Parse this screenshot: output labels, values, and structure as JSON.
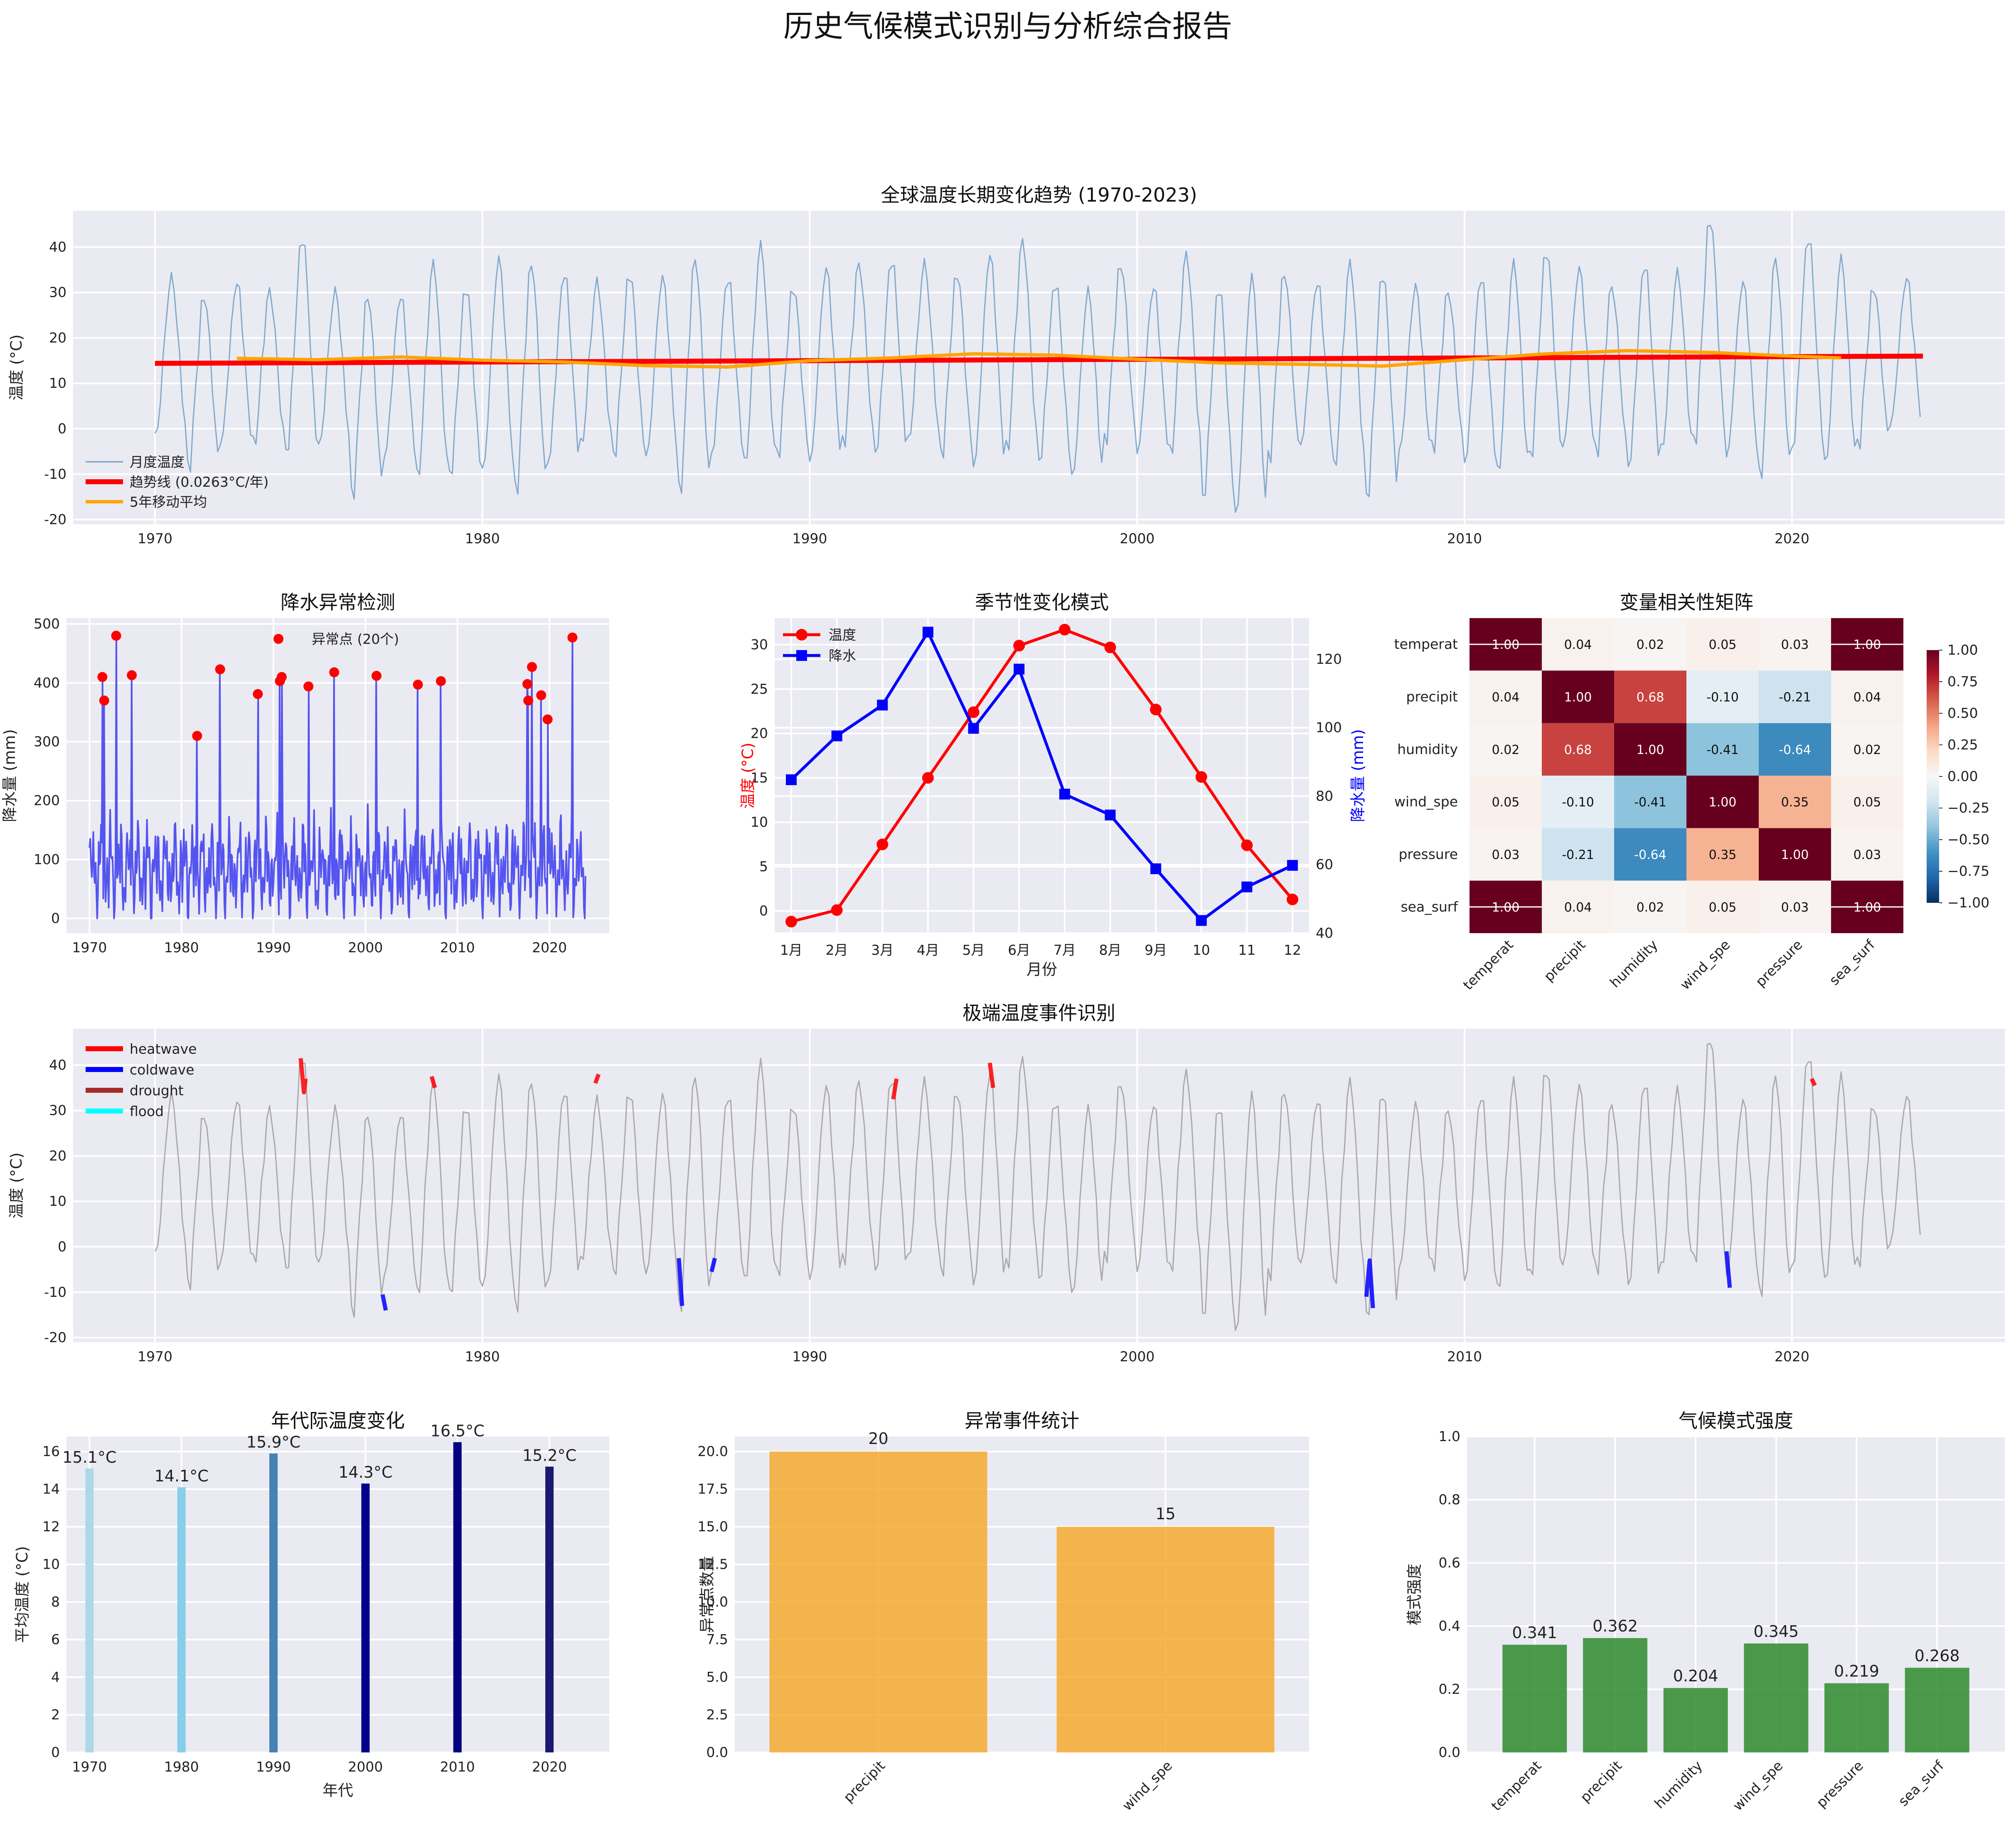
{
  "suptitle": "历史气候模式识别与分析综合报告",
  "chart_data": [
    {
      "id": "trend",
      "type": "line",
      "title": "全球温度长期变化趋势 (1970-2023)",
      "xlabel": "",
      "ylabel": "温度 (°C)",
      "xlim": [
        1967.5,
        2026.5
      ],
      "ylim": [
        -21,
        48
      ],
      "xticks": [
        1970,
        1980,
        1990,
        2000,
        2010,
        2020
      ],
      "yticks": [
        -20,
        -10,
        0,
        10,
        20,
        30,
        40
      ],
      "grid": true,
      "legend_position": "lower-left",
      "legend": [
        "月度温度",
        "趋势线 (0.0263°C/年)",
        "5年移动平均"
      ],
      "series": [
        {
          "name": "月度温度",
          "kind": "monthly",
          "color": "#6f9fc8",
          "seasonal_mean": [
            -1,
            -1,
            7,
            15,
            22,
            30,
            32,
            30,
            23,
            15,
            7,
            1
          ],
          "yearly_peaks": [
            33,
            29,
            32,
            30,
            42,
            30,
            29,
            29,
            36,
            31,
            37,
            36,
            34,
            32,
            34,
            33,
            37,
            33,
            40,
            31,
            35,
            36,
            37,
            36,
            34,
            38,
            41,
            32,
            30,
            36,
            31,
            38,
            31,
            33,
            34,
            32,
            36,
            34,
            31,
            30,
            33,
            36,
            39,
            35,
            31,
            36,
            34,
            46,
            32,
            37,
            42,
            37,
            31,
            33
          ],
          "yearly_troughs": [
            -1,
            -8,
            -2,
            -3,
            -4,
            -3,
            -14,
            -5,
            -10,
            -9,
            -8,
            -13,
            -6,
            -3,
            -5,
            -5,
            -13,
            -4,
            -7,
            -5,
            -6,
            -3,
            -4,
            -2,
            -5,
            -7,
            -4,
            -6,
            -10,
            -2,
            -4,
            -5,
            -14,
            -18,
            -6,
            -2,
            -8,
            -14,
            -4,
            -4,
            -6,
            -9,
            -5,
            -3,
            -5,
            -7,
            -4,
            -2,
            -5,
            -10,
            -3,
            -7,
            -3,
            2
          ]
        },
        {
          "name": "趋势线 (0.0263°C/年)",
          "color": "#ff0000",
          "x": [
            1970,
            2024
          ],
          "y": [
            14.4,
            16.0
          ]
        },
        {
          "name": "5年移动平均",
          "color": "#ffa500",
          "x": [
            1972.5,
            1975,
            1977.5,
            1980,
            1982.5,
            1985,
            1987.5,
            1990,
            1992.5,
            1995,
            1997.5,
            2000,
            2002.5,
            2005,
            2007.5,
            2010,
            2012.5,
            2015,
            2017.5,
            2020,
            2021.5
          ],
          "y": [
            15.5,
            15.2,
            15.8,
            15.1,
            14.7,
            13.9,
            13.6,
            15.0,
            15.6,
            16.5,
            16.2,
            15.3,
            14.5,
            14.2,
            13.8,
            15.2,
            16.5,
            17.2,
            16.8,
            16.0,
            15.6
          ]
        }
      ]
    },
    {
      "id": "precip",
      "type": "line",
      "title": "降水异常检测",
      "xlabel": "",
      "ylabel": "降水量 (mm)",
      "xlim": [
        1967.5,
        2026.5
      ],
      "ylim": [
        -25,
        510
      ],
      "xticks": [
        1970,
        1980,
        1990,
        2000,
        2010,
        2020
      ],
      "yticks": [
        0,
        100,
        200,
        300,
        400,
        500
      ],
      "grid": true,
      "legend_position": "top",
      "legend": [
        "异常点 (20个)"
      ],
      "series": [
        {
          "name": "降水量",
          "color": "#3a3af0",
          "baseline_monthly": [
            95,
            80,
            110,
            130,
            100,
            120,
            85,
            60,
            45,
            40,
            55,
            70
          ]
        },
        {
          "name": "异常点 (20个)",
          "color": "#ff0000",
          "points": [
            [
              1971.4,
              410
            ],
            [
              1971.6,
              370
            ],
            [
              1972.9,
              480
            ],
            [
              1974.6,
              413
            ],
            [
              1981.7,
              310
            ],
            [
              1984.2,
              423
            ],
            [
              1988.3,
              381
            ],
            [
              1990.7,
              403
            ],
            [
              1990.9,
              410
            ],
            [
              1993.8,
              394
            ],
            [
              1996.6,
              418
            ],
            [
              2001.2,
              412
            ],
            [
              2005.7,
              397
            ],
            [
              2008.2,
              403
            ],
            [
              2017.6,
              398
            ],
            [
              2017.7,
              370
            ],
            [
              2018.1,
              427
            ],
            [
              2019.1,
              379
            ],
            [
              2019.8,
              338
            ],
            [
              2022.5,
              477
            ]
          ]
        }
      ]
    },
    {
      "id": "seasonal",
      "type": "line",
      "title": "季节性变化模式",
      "xlabel": "月份",
      "ylabel": "温度 (°C)",
      "ylabel_right": "降水量 (mm)",
      "categories": [
        "1月",
        "2月",
        "3月",
        "4月",
        "5月",
        "6月",
        "7月",
        "8月",
        "9月",
        "10",
        "11",
        "12"
      ],
      "ylim": [
        -2.5,
        33
      ],
      "ylim_right": [
        40,
        132
      ],
      "yticks": [
        0,
        5,
        10,
        15,
        20,
        25,
        30
      ],
      "yticks_right": [
        40,
        60,
        80,
        100,
        120
      ],
      "grid": true,
      "legend_position": "top-left",
      "legend": [
        "温度",
        "降水"
      ],
      "series": [
        {
          "name": "温度",
          "color": "#ff0000",
          "axis": "left",
          "values": [
            -1.2,
            0.1,
            7.5,
            15.0,
            22.4,
            29.9,
            31.7,
            29.7,
            22.7,
            15.1,
            7.4,
            1.3
          ]
        },
        {
          "name": "降水",
          "color": "#0000ff",
          "axis": "right",
          "values": [
            84.8,
            97.6,
            106.6,
            127.9,
            99.8,
            117.1,
            80.6,
            74.5,
            58.8,
            43.7,
            53.5,
            59.8
          ]
        }
      ]
    },
    {
      "id": "corr",
      "type": "heatmap",
      "title": "变量相关性矩阵",
      "labels": [
        "temperat",
        "precipit",
        "humidity",
        "wind_spe",
        "pressure",
        "sea_surf"
      ],
      "matrix": [
        [
          1.0,
          0.04,
          0.02,
          0.05,
          0.03,
          1.0
        ],
        [
          0.04,
          1.0,
          0.68,
          -0.1,
          -0.21,
          0.04
        ],
        [
          0.02,
          0.68,
          1.0,
          -0.41,
          -0.64,
          0.02
        ],
        [
          0.05,
          -0.1,
          -0.41,
          1.0,
          0.35,
          0.05
        ],
        [
          0.03,
          -0.21,
          -0.64,
          0.35,
          1.0,
          0.03
        ],
        [
          1.0,
          0.04,
          0.02,
          0.05,
          0.03,
          1.0
        ]
      ],
      "vmin": -1.0,
      "vmax": 1.0,
      "colorbar_ticks": [
        "1.00",
        "0.75",
        "0.50",
        "0.25",
        "0.00",
        "−0.25",
        "−0.50",
        "−0.75",
        "−1.00"
      ]
    },
    {
      "id": "extreme",
      "type": "line",
      "title": "极端温度事件识别",
      "xlabel": "",
      "ylabel": "温度 (°C)",
      "xlim": [
        1967.5,
        2026.5
      ],
      "ylim": [
        -21,
        48
      ],
      "xticks": [
        1970,
        1980,
        1990,
        2000,
        2010,
        2020
      ],
      "yticks": [
        -20,
        -10,
        0,
        10,
        20,
        30,
        40
      ],
      "grid": true,
      "legend_position": "top-left",
      "legend": [
        "heatwave",
        "coldwave",
        "drought",
        "flood"
      ],
      "legend_colors": [
        "#ff0000",
        "#0000ff",
        "#a52a2a",
        "#00ffff"
      ],
      "events": [
        {
          "type": "heatwave",
          "x": [
            1974.45,
            1974.55,
            1974.6
          ],
          "y": [
            41.5,
            34,
            37
          ]
        },
        {
          "type": "heatwave",
          "x": [
            1978.45,
            1978.55
          ],
          "y": [
            37.5,
            35
          ]
        },
        {
          "type": "heatwave",
          "x": [
            1983.45,
            1983.55
          ],
          "y": [
            36,
            38
          ]
        },
        {
          "type": "heatwave",
          "x": [
            1992.55,
            1992.65
          ],
          "y": [
            32.5,
            37
          ]
        },
        {
          "type": "heatwave",
          "x": [
            1995.5,
            1995.6
          ],
          "y": [
            40.5,
            35
          ]
        },
        {
          "type": "heatwave",
          "x": [
            2020.6,
            2020.7
          ],
          "y": [
            37,
            35.5
          ]
        },
        {
          "type": "coldwave",
          "x": [
            1976.95,
            1977.05
          ],
          "y": [
            -10.5,
            -14
          ]
        },
        {
          "type": "coldwave",
          "x": [
            1986.0,
            1986.1
          ],
          "y": [
            -2.5,
            -13
          ]
        },
        {
          "type": "coldwave",
          "x": [
            1987.0,
            1987.1
          ],
          "y": [
            -5.5,
            -2.5
          ]
        },
        {
          "type": "coldwave",
          "x": [
            2007.0,
            2007.1,
            2007.2
          ],
          "y": [
            -11,
            -3,
            -13.5
          ]
        },
        {
          "type": "coldwave",
          "x": [
            2018.0,
            2018.1
          ],
          "y": [
            -1,
            -9
          ]
        }
      ]
    },
    {
      "id": "decade",
      "type": "bar",
      "title": "年代际温度变化",
      "xlabel": "年代",
      "ylabel": "平均温度 (°C)",
      "categories": [
        "1970",
        "1980",
        "1990",
        "2000",
        "2010",
        "2020"
      ],
      "x": [
        1970,
        1980,
        1990,
        2000,
        2010,
        2020
      ],
      "values": [
        15.1,
        14.1,
        15.9,
        14.3,
        16.5,
        15.2
      ],
      "value_labels": [
        "15.1°C",
        "14.1°C",
        "15.9°C",
        "14.3°C",
        "16.5°C",
        "15.2°C"
      ],
      "colors": [
        "#add8e6",
        "#87ceeb",
        "#4682b4",
        "#00008b",
        "#000080",
        "#191970"
      ],
      "xlim": [
        1967.5,
        2026.5
      ],
      "ylim": [
        0,
        16.8
      ],
      "yticks": [
        0,
        2,
        4,
        6,
        8,
        10,
        12,
        14,
        16
      ],
      "grid": true
    },
    {
      "id": "anomaly",
      "type": "bar",
      "title": "异常事件统计",
      "xlabel": "",
      "ylabel": "异常点数量",
      "categories": [
        "precipit",
        "wind_spe"
      ],
      "values": [
        20,
        15
      ],
      "value_labels": [
        "20",
        "15"
      ],
      "colors": [
        "#f5a623",
        "#f5a623"
      ],
      "ylim": [
        0,
        21
      ],
      "yticks": [
        "0.0",
        "2.5",
        "5.0",
        "7.5",
        "10.0",
        "12.5",
        "15.0",
        "17.5",
        "20.0"
      ],
      "grid": true
    },
    {
      "id": "strength",
      "type": "bar",
      "title": "气候模式强度",
      "xlabel": "",
      "ylabel": "模式强度",
      "categories": [
        "temperat",
        "precipit",
        "humidity",
        "wind_spe",
        "pressure",
        "sea_surf"
      ],
      "values": [
        0.341,
        0.362,
        0.204,
        0.345,
        0.219,
        0.268
      ],
      "value_labels": [
        "0.341",
        "0.362",
        "0.204",
        "0.345",
        "0.219",
        "0.268"
      ],
      "colors": [
        "#2e8b2e",
        "#2e8b2e",
        "#2e8b2e",
        "#2e8b2e",
        "#2e8b2e",
        "#2e8b2e"
      ],
      "ylim": [
        0,
        1.0
      ],
      "yticks": [
        "0.0",
        "0.2",
        "0.4",
        "0.6",
        "0.8",
        "1.0"
      ],
      "grid": true
    }
  ]
}
